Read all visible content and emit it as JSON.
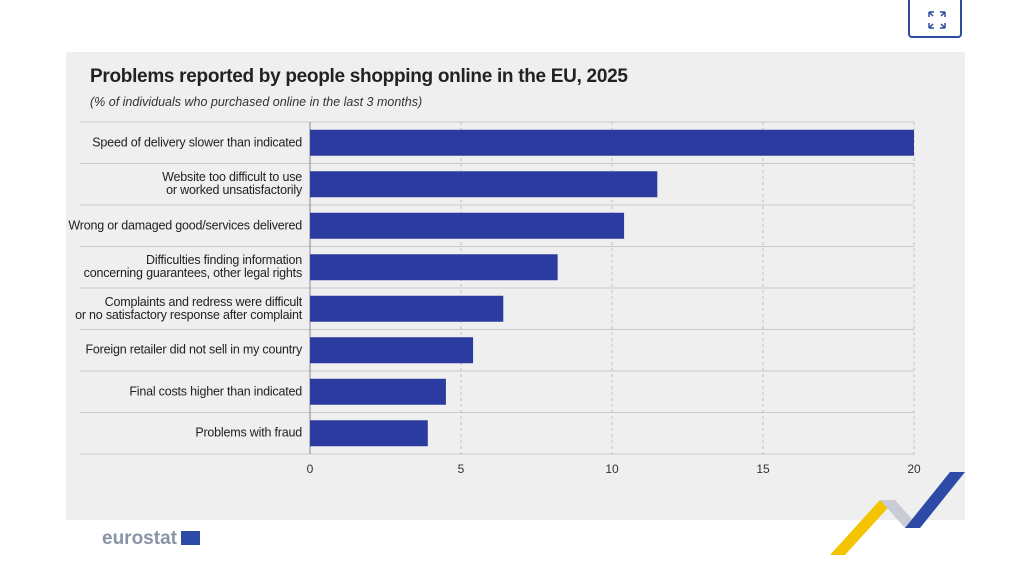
{
  "chart_data": {
    "type": "barh",
    "title": "Problems reported by people shopping online in the EU, 2025",
    "subtitle": "(% of individuals who purchased online in the last 3 months)",
    "categories": [
      "Speed of delivery slower than indicated",
      "Website too difficult to use\nor worked unsatisfactorily",
      "Wrong or damaged good/services delivered",
      "Difficulties finding information\nconcerning guarantees, other legal rights",
      "Complaints and redress were difficult\nor no satisfactory response after complaint",
      "Foreign retailer did not sell in my country",
      "Final costs higher than indicated",
      "Problems with fraud"
    ],
    "values": [
      20.0,
      11.5,
      10.4,
      8.2,
      6.4,
      5.4,
      4.5,
      3.9
    ],
    "color": "#2b3b9f",
    "xlim": [
      0,
      20
    ],
    "xticks": [
      0,
      5,
      10,
      15,
      20
    ],
    "grid": true
  },
  "brand": "eurostat"
}
